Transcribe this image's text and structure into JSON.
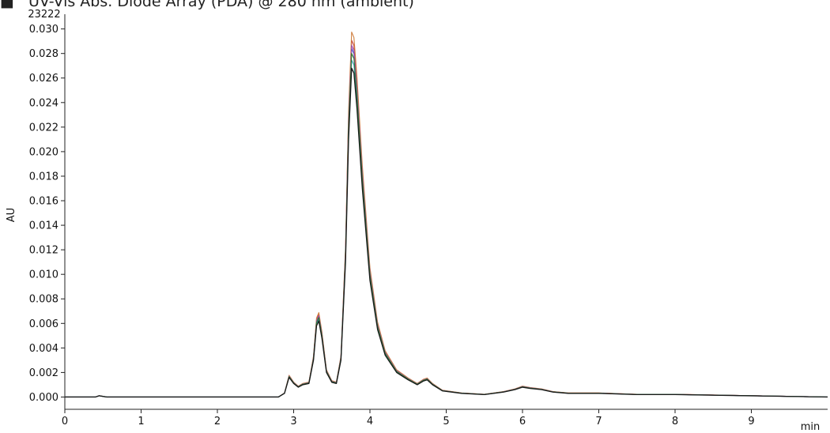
{
  "header": {
    "mark": "■",
    "title": "UV-Vis Abs. Diode Array (PDA) @ 280 nm (ambient)",
    "counter": "23222"
  },
  "chart_data": {
    "type": "line",
    "xlabel": "min",
    "ylabel": "AU",
    "xlim": [
      0,
      10
    ],
    "ylim": [
      -0.001,
      0.0312
    ],
    "x_ticks": [
      "0",
      "1",
      "2",
      "3",
      "4",
      "5",
      "6",
      "7",
      "8",
      "9"
    ],
    "y_ticks": [
      "0.000",
      "0.002",
      "0.004",
      "0.006",
      "0.008",
      "0.010",
      "0.012",
      "0.014",
      "0.016",
      "0.018",
      "0.020",
      "0.022",
      "0.024",
      "0.026",
      "0.028",
      "0.030"
    ],
    "grid": false,
    "legend": "none",
    "series": [
      {
        "color": "#1a1a1a",
        "scale": 1.0,
        "values": [
          [
            0.0,
            0.0
          ],
          [
            0.2,
            0.0
          ],
          [
            0.4,
            0.0
          ],
          [
            0.45,
            0.0001
          ],
          [
            0.55,
            0.0
          ],
          [
            1.0,
            0.0
          ],
          [
            2.0,
            0.0
          ],
          [
            2.8,
            0.0
          ],
          [
            2.88,
            0.0003
          ],
          [
            2.94,
            0.0016
          ],
          [
            3.0,
            0.0011
          ],
          [
            3.06,
            0.0008
          ],
          [
            3.12,
            0.001
          ],
          [
            3.2,
            0.0011
          ],
          [
            3.26,
            0.003
          ],
          [
            3.3,
            0.0058
          ],
          [
            3.33,
            0.0062
          ],
          [
            3.37,
            0.0048
          ],
          [
            3.43,
            0.002
          ],
          [
            3.5,
            0.0012
          ],
          [
            3.56,
            0.0011
          ],
          [
            3.62,
            0.003
          ],
          [
            3.68,
            0.011
          ],
          [
            3.72,
            0.021
          ],
          [
            3.76,
            0.0268
          ],
          [
            3.79,
            0.0264
          ],
          [
            3.83,
            0.0235
          ],
          [
            3.9,
            0.017
          ],
          [
            4.0,
            0.0095
          ],
          [
            4.1,
            0.0055
          ],
          [
            4.2,
            0.0034
          ],
          [
            4.35,
            0.002
          ],
          [
            4.5,
            0.0014
          ],
          [
            4.62,
            0.001
          ],
          [
            4.7,
            0.0013
          ],
          [
            4.75,
            0.0014
          ],
          [
            4.82,
            0.001
          ],
          [
            4.95,
            0.0005
          ],
          [
            5.2,
            0.0003
          ],
          [
            5.5,
            0.0002
          ],
          [
            5.75,
            0.0004
          ],
          [
            5.9,
            0.0006
          ],
          [
            6.0,
            0.0008
          ],
          [
            6.1,
            0.0007
          ],
          [
            6.25,
            0.0006
          ],
          [
            6.4,
            0.0004
          ],
          [
            6.6,
            0.0003
          ],
          [
            6.8,
            0.0003
          ],
          [
            7.0,
            0.0003
          ],
          [
            7.5,
            0.0002
          ],
          [
            8.0,
            0.0002
          ],
          [
            9.0,
            0.0001
          ],
          [
            10.0,
            0.0
          ]
        ]
      },
      {
        "color": "#3a4fc8",
        "scale": 1.06
      },
      {
        "color": "#c43b3b",
        "scale": 1.085
      },
      {
        "color": "#d08040",
        "scale": 1.11
      },
      {
        "color": "#9a4fb0",
        "scale": 1.07
      },
      {
        "color": "#3aa0c0",
        "scale": 1.025
      },
      {
        "color": "#2e7d32",
        "scale": 1.045
      }
    ]
  }
}
